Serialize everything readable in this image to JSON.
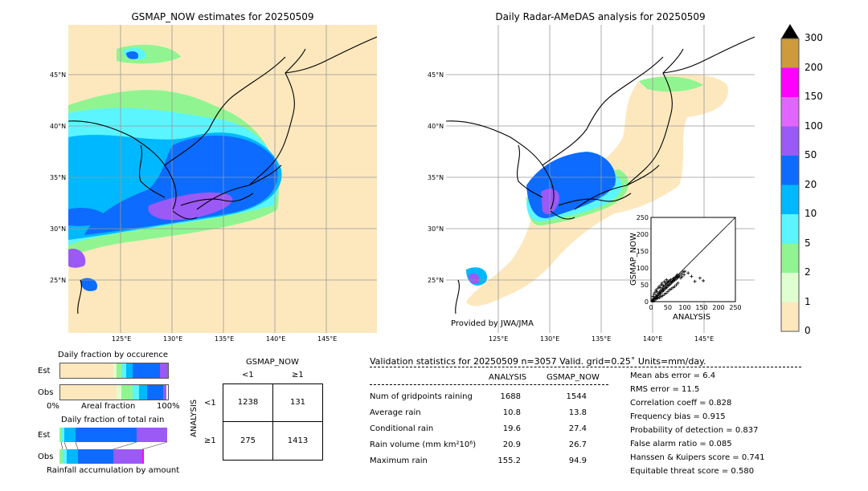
{
  "left_map": {
    "title": "GSMAP_NOW estimates for 20250509",
    "lat_ticks": [
      "45°N",
      "40°N",
      "35°N",
      "30°N",
      "25°N"
    ],
    "lon_ticks": [
      "125°E",
      "130°E",
      "135°E",
      "140°E",
      "145°E"
    ]
  },
  "right_map": {
    "title": "Daily Radar-AMeDAS analysis for 20250509",
    "lat_ticks": [
      "45°N",
      "40°N",
      "35°N",
      "30°N",
      "25°N"
    ],
    "lon_ticks": [
      "125°E",
      "130°E",
      "135°E",
      "140°E",
      "145°E"
    ],
    "credit": "Provided by JWA/JMA"
  },
  "colorbar": {
    "labels": [
      "300",
      "200",
      "150",
      "100",
      "50",
      "20",
      "10",
      "5",
      "2",
      "1",
      "0"
    ],
    "colors": [
      "#cd9a3c",
      "#ff00ff",
      "#e066ff",
      "#9b59f5",
      "#0d6bff",
      "#00b8ff",
      "#5af5ff",
      "#90f590",
      "#e0ffd0",
      "#fde8be"
    ]
  },
  "occurrence": {
    "title": "Daily fraction by occurence",
    "row1": "Est",
    "row2": "Obs",
    "axis_left": "0%",
    "axis_mid": "Areal fraction",
    "axis_right": "100%"
  },
  "total_rain": {
    "title": "Daily fraction of total rain",
    "row1": "Est",
    "row2": "Obs",
    "caption": "Rainfall accumulation by amount"
  },
  "contingency": {
    "col_title": "GSMAP_NOW",
    "col_lt": "<1",
    "col_ge": "≥1",
    "row_title": "ANALYSIS",
    "row_lt": "<1",
    "row_ge": "≥1",
    "c11": "1238",
    "c12": "131",
    "c21": "275",
    "c22": "1413"
  },
  "validation": {
    "header": "Validation statistics for 20250509  n=3057 Valid. grid=0.25˚ Units=mm/day.",
    "col_analysis": "ANALYSIS",
    "col_gsmap": "GSMAP_NOW",
    "rows": [
      {
        "label": "Num of gridpoints raining",
        "analysis": "1688",
        "gsmap": "1544"
      },
      {
        "label": "Average rain",
        "analysis": "10.8",
        "gsmap": "13.8"
      },
      {
        "label": "Conditional rain",
        "analysis": "19.6",
        "gsmap": "27.4"
      },
      {
        "label": "Rain volume (mm km²10⁶)",
        "analysis": "20.9",
        "gsmap": "26.7"
      },
      {
        "label": "Maximum rain",
        "analysis": "155.2",
        "gsmap": "94.9"
      }
    ],
    "scores": [
      "Mean abs error =    6.4",
      "RMS error =   11.5",
      "Correlation coeff =  0.828",
      "Frequency bias =  0.915",
      "Probability of detection =  0.837",
      "False alarm ratio =  0.085",
      "Hanssen & Kuipers score =  0.741",
      "Equitable threat score =  0.580"
    ]
  },
  "chart_data": {
    "type": "scatter",
    "xlabel": "ANALYSIS",
    "ylabel": "GSMAP_NOW",
    "xlim": [
      0,
      250
    ],
    "ylim": [
      0,
      250
    ],
    "ticks": [
      "0",
      "50",
      "100",
      "150",
      "200",
      "250"
    ],
    "points": [
      [
        3,
        2
      ],
      [
        5,
        4
      ],
      [
        6,
        8
      ],
      [
        8,
        5
      ],
      [
        10,
        12
      ],
      [
        12,
        9
      ],
      [
        14,
        16
      ],
      [
        15,
        11
      ],
      [
        17,
        20
      ],
      [
        18,
        14
      ],
      [
        20,
        18
      ],
      [
        22,
        25
      ],
      [
        24,
        19
      ],
      [
        25,
        28
      ],
      [
        27,
        22
      ],
      [
        28,
        33
      ],
      [
        30,
        26
      ],
      [
        32,
        35
      ],
      [
        34,
        30
      ],
      [
        35,
        40
      ],
      [
        37,
        33
      ],
      [
        38,
        45
      ],
      [
        40,
        36
      ],
      [
        42,
        48
      ],
      [
        44,
        40
      ],
      [
        45,
        52
      ],
      [
        47,
        42
      ],
      [
        48,
        55
      ],
      [
        50,
        46
      ],
      [
        52,
        58
      ],
      [
        54,
        49
      ],
      [
        55,
        62
      ],
      [
        57,
        52
      ],
      [
        58,
        65
      ],
      [
        60,
        55
      ],
      [
        62,
        60
      ],
      [
        64,
        58
      ],
      [
        65,
        68
      ],
      [
        67,
        62
      ],
      [
        68,
        70
      ],
      [
        70,
        64
      ],
      [
        72,
        72
      ],
      [
        74,
        66
      ],
      [
        75,
        76
      ],
      [
        77,
        70
      ],
      [
        78,
        80
      ],
      [
        80,
        72
      ],
      [
        82,
        75
      ],
      [
        85,
        78
      ],
      [
        88,
        70
      ],
      [
        90,
        82
      ],
      [
        92,
        74
      ],
      [
        95,
        88
      ],
      [
        98,
        80
      ],
      [
        100,
        90
      ],
      [
        6,
        15
      ],
      [
        9,
        22
      ],
      [
        12,
        28
      ],
      [
        15,
        35
      ],
      [
        18,
        30
      ],
      [
        21,
        40
      ],
      [
        24,
        45
      ],
      [
        28,
        42
      ],
      [
        30,
        50
      ],
      [
        33,
        55
      ],
      [
        36,
        48
      ],
      [
        40,
        60
      ],
      [
        43,
        55
      ],
      [
        46,
        65
      ],
      [
        50,
        60
      ],
      [
        8,
        2
      ],
      [
        12,
        5
      ],
      [
        16,
        8
      ],
      [
        20,
        10
      ],
      [
        25,
        12
      ],
      [
        30,
        15
      ],
      [
        35,
        18
      ],
      [
        40,
        22
      ],
      [
        45,
        25
      ],
      [
        50,
        30
      ],
      [
        55,
        35
      ],
      [
        60,
        38
      ],
      [
        65,
        42
      ],
      [
        70,
        45
      ],
      [
        75,
        50
      ],
      [
        80,
        55
      ],
      [
        145,
        70
      ],
      [
        155,
        62
      ],
      [
        120,
        75
      ],
      [
        110,
        85
      ],
      [
        130,
        60
      ]
    ]
  }
}
